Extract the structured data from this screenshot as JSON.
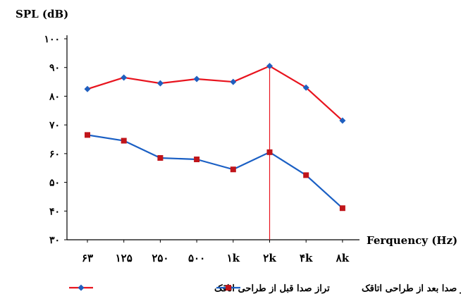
{
  "chart_data": {
    "type": "line",
    "ylabel": "SPL  (dB)",
    "xlabel": "Ferquency  (Hz)",
    "categories": [
      "۶۳",
      "۱۲۵",
      "۲۵۰",
      "۵۰۰",
      "۱k",
      "۲k",
      "۴k",
      "۸k"
    ],
    "yticks": [
      {
        "value": 30,
        "label": "۳۰"
      },
      {
        "value": 40,
        "label": "۴۰"
      },
      {
        "value": 50,
        "label": "۵۰"
      },
      {
        "value": 60,
        "label": "۶۰"
      },
      {
        "value": 70,
        "label": "۷۰"
      },
      {
        "value": 80,
        "label": "۸۰"
      },
      {
        "value": 90,
        "label": "۹۰"
      },
      {
        "value": 100,
        "label": "۱۰۰"
      }
    ],
    "ylim": [
      30,
      100
    ],
    "grid": false,
    "legend_position": "bottom",
    "highlight_category": "۲k",
    "series": [
      {
        "name": "تراز صدا قبل از طراحی اتاقک",
        "color": "#e8141e",
        "marker": "diamond",
        "marker_color": "#1f5fbf",
        "values": [
          82.5,
          86.5,
          84.5,
          86,
          85,
          90.5,
          83,
          71.5
        ]
      },
      {
        "name": "تراز صدا بعد از طراحی اتاقک",
        "color": "#1a5fc4",
        "marker": "square",
        "marker_color": "#c0151a",
        "values": [
          66.5,
          64.5,
          58.5,
          58,
          54.5,
          60.5,
          52.5,
          41
        ]
      }
    ]
  }
}
